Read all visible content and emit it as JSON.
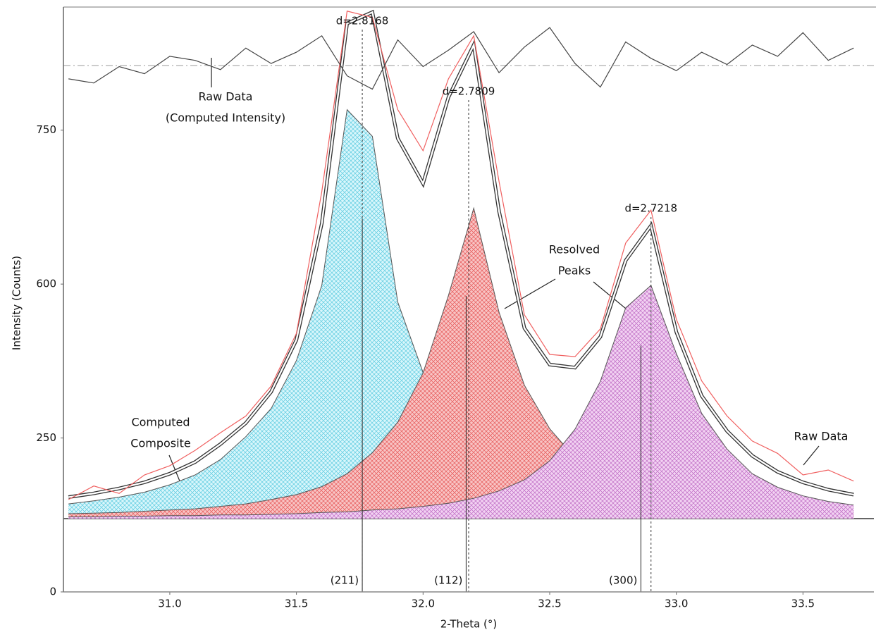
{
  "chart_data": {
    "type": "line",
    "xlabel": "2-Theta (°)",
    "ylabel": "Intensity (Counts)",
    "xlim": [
      30.58,
      33.78
    ],
    "xticks": [
      {
        "value": 31,
        "label": "31.0"
      },
      31.5,
      {
        "value": 32,
        "label": "32.0"
      },
      32.5,
      {
        "value": 33,
        "label": "33.0"
      },
      33.5
    ],
    "ylim": [
      0,
      870
    ],
    "yticks": [
      0,
      250,
      600,
      750
    ],
    "baseline": 119,
    "reference_line": 813,
    "x": [
      30.6,
      30.7,
      30.8,
      30.9,
      31.0,
      31.1,
      31.2,
      31.3,
      31.4,
      31.5,
      31.6,
      31.7,
      31.8,
      31.9,
      32.0,
      32.1,
      32.2,
      32.3,
      32.4,
      32.5,
      32.6,
      32.7,
      32.8,
      32.9,
      33.0,
      33.1,
      33.2,
      33.3,
      33.4,
      33.5,
      33.6,
      33.7
    ],
    "series": [
      {
        "style": "peak",
        "color": "#3cc0d8",
        "fill": "#d8f6fb",
        "values": [
          143,
          148,
          154,
          162,
          174,
          190,
          215,
          253,
          317,
          426,
          597,
          770,
          744,
          559,
          399,
          302,
          244,
          209,
          186,
          171,
          160,
          153,
          147,
          142,
          139,
          136,
          134,
          132,
          131,
          129,
          128,
          127
        ]
      },
      {
        "style": "peak",
        "color": "#e03a3a",
        "fill": "#f8c4c4",
        "values": [
          127,
          128,
          129,
          131,
          133,
          135,
          139,
          143,
          150,
          158,
          171,
          192,
          226,
          286,
          398,
          574,
          674,
          536,
          370,
          271,
          218,
          187,
          168,
          156,
          148,
          142,
          138,
          135,
          132,
          130,
          129,
          128
        ]
      },
      {
        "style": "peak",
        "color": "#b050b8",
        "fill": "#f2d2f2",
        "values": [
          122,
          122,
          123,
          123,
          124,
          124,
          125,
          125,
          126,
          127,
          129,
          130,
          133,
          135,
          139,
          144,
          152,
          164,
          182,
          213,
          270,
          379,
          546,
          597,
          442,
          306,
          232,
          192,
          170,
          156,
          147,
          141
        ]
      },
      {
        "style": "composite",
        "color": "#333333",
        "values": [
          154,
          160,
          168,
          178,
          192,
          211,
          240,
          284,
          355,
          473,
          659,
          854,
          865,
          742,
          698,
          782,
          833,
          671,
          500,
          417,
          410,
          480,
          623,
          657,
          491,
          346,
          266,
          221,
          195,
          178,
          166,
          158
        ]
      },
      {
        "style": "line",
        "color": "#f06060",
        "values": [
          150,
          172,
          160,
          190,
          205,
          230,
          262,
          300,
          368,
          488,
          690,
          866,
          860,
          770,
          730,
          800,
          842,
          700,
          530,
          440,
          435,
          498,
          640,
          672,
          520,
          380,
          300,
          245,
          225,
          190,
          198,
          180
        ]
      },
      {
        "style": "line",
        "color": "#444444",
        "values": [
          800,
          796,
          812,
          805,
          822,
          818,
          809,
          830,
          815,
          826,
          842,
          803,
          790,
          838,
          812,
          828,
          846,
          806,
          831,
          850,
          815,
          792,
          836,
          820,
          808,
          826,
          814,
          833,
          822,
          845,
          818,
          830
        ]
      }
    ],
    "d_spacings": [
      {
        "text": "d=2.8168",
        "x": 31.76
      },
      {
        "text": "d=2.7809",
        "x": 32.18
      },
      {
        "text": "d=2.7218",
        "x": 32.9
      }
    ],
    "reflections": [
      {
        "text": "(211)",
        "x": 31.76,
        "height": 664
      },
      {
        "text": "(112)",
        "x": 32.17,
        "height": 573
      },
      {
        "text": "(300)",
        "x": 32.86,
        "height": 460
      }
    ],
    "callouts": [
      {
        "lines": [
          "Raw Data",
          "(Computed Intensity)"
        ]
      },
      {
        "lines": [
          "Resolved",
          "Peaks"
        ]
      },
      {
        "lines": [
          "Computed",
          "Composite"
        ]
      },
      {
        "lines": [
          "Raw Data"
        ]
      }
    ]
  }
}
